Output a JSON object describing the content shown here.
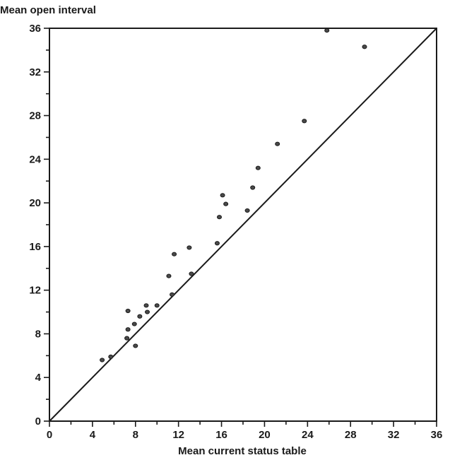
{
  "chart_data": {
    "type": "scatter",
    "title": "",
    "xlabel": "Mean current status table",
    "ylabel": "Mean open interval",
    "xlim": [
      0,
      36
    ],
    "ylim": [
      0,
      36
    ],
    "xticks": [
      0,
      4,
      8,
      12,
      16,
      20,
      24,
      28,
      32,
      36
    ],
    "yticks": [
      0,
      4,
      8,
      12,
      16,
      20,
      24,
      28,
      32,
      36
    ],
    "grid": false,
    "reference_line": {
      "from": [
        0,
        0
      ],
      "to": [
        36,
        36
      ]
    },
    "series": [
      {
        "x": [
          4.9,
          5.7,
          7.2,
          7.3,
          7.3,
          7.9,
          8.0,
          8.4,
          9.0,
          9.1,
          10.0,
          11.1,
          11.4,
          11.6,
          13.0,
          13.2,
          15.6,
          15.8,
          16.1,
          16.4,
          18.4,
          18.9,
          19.4,
          21.2,
          23.7,
          25.8,
          29.3
        ],
        "y": [
          5.6,
          5.9,
          7.6,
          8.4,
          10.1,
          8.9,
          6.9,
          9.6,
          10.6,
          10.0,
          10.6,
          13.3,
          11.6,
          15.3,
          15.9,
          13.5,
          16.3,
          18.7,
          20.7,
          19.9,
          19.3,
          21.4,
          23.2,
          25.4,
          27.5,
          35.8,
          34.3
        ]
      }
    ]
  }
}
